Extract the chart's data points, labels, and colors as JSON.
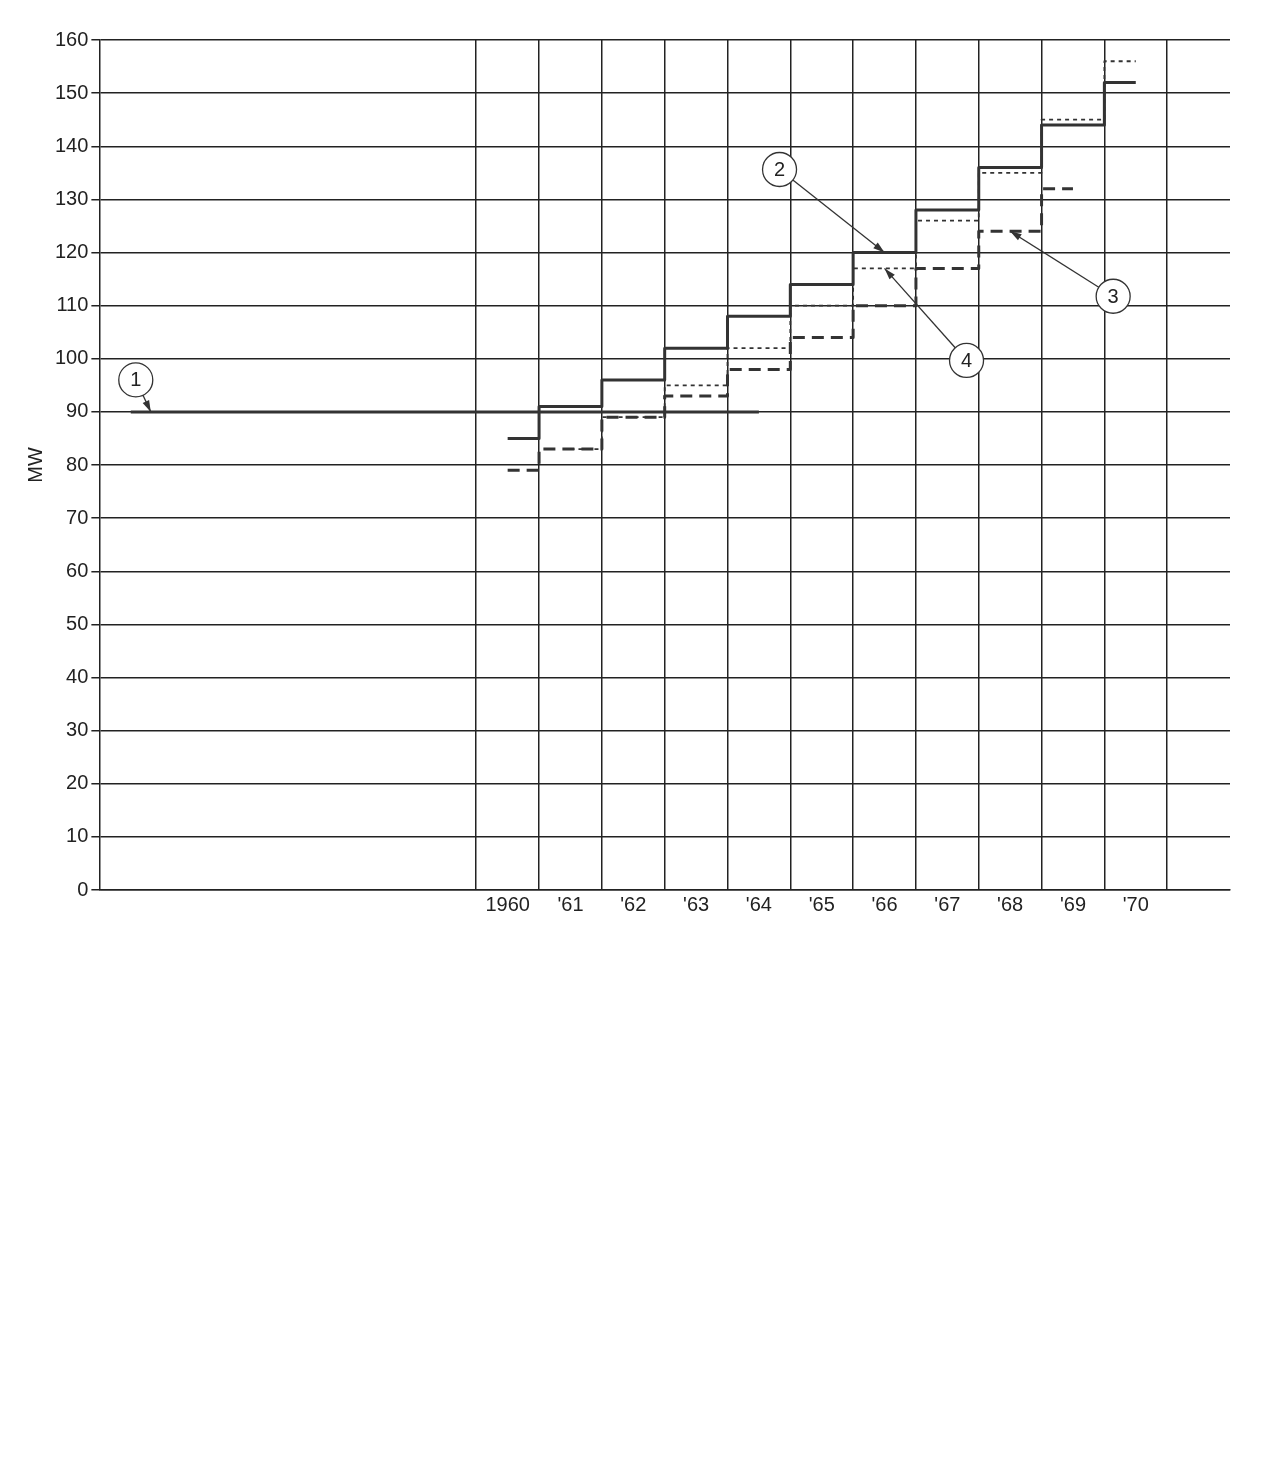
{
  "chart_data": {
    "type": "step",
    "ylabel": "MW",
    "categories": [
      null,
      null,
      null,
      null,
      null,
      null,
      "1960",
      "'61",
      "'62",
      "'63",
      "'64",
      "'65",
      "'66",
      "'67",
      "'68",
      "'69",
      "'70",
      null
    ],
    "ylim": [
      0,
      160
    ],
    "yticks": [
      0,
      10,
      20,
      30,
      40,
      50,
      60,
      70,
      80,
      90,
      100,
      110,
      120,
      130,
      140,
      150,
      160
    ],
    "grid": true,
    "legend": false,
    "series": [
      {
        "color": "#333333",
        "line_style": "solid",
        "values": [
          90,
          90,
          90,
          90,
          90,
          90,
          90,
          90,
          90,
          90,
          90,
          null,
          null,
          null,
          null,
          null,
          null,
          null
        ]
      },
      {
        "color": "#333333",
        "line_style": "solid",
        "values": [
          null,
          null,
          null,
          null,
          null,
          null,
          85,
          91,
          96,
          102,
          108,
          114,
          120,
          128,
          136,
          144,
          152,
          null
        ]
      },
      {
        "color": "#333333",
        "line_style": "dashed",
        "values": [
          null,
          null,
          null,
          null,
          null,
          null,
          79,
          83,
          89,
          93,
          98,
          104,
          110,
          117,
          124,
          132,
          null,
          null
        ]
      },
      {
        "color": "#333333",
        "line_style": "dotted",
        "values": [
          null,
          null,
          null,
          null,
          null,
          null,
          null,
          83,
          89,
          95,
          102,
          110,
          117,
          126,
          135,
          145,
          156,
          null
        ]
      }
    ],
    "annotations": [
      "1",
      {
        "text": "2",
        "x": "'66",
        "y": 120
      },
      {
        "text": "3",
        "x": "'68",
        "y": 124
      },
      {
        "text": "4",
        "x": "'66",
        "y": 117
      }
    ]
  }
}
